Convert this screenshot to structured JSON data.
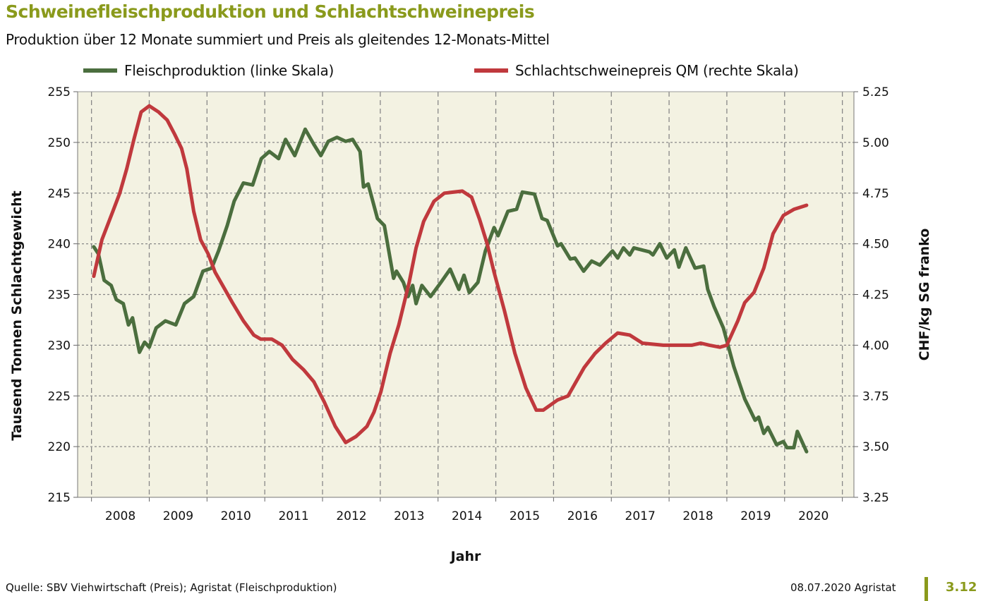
{
  "header": {
    "title": "Schweinefleischproduktion und Schlachtschweinepreis",
    "subtitle": "Produktion über 12 Monate summiert und Preis als gleitendes 12-Monats-Mittel"
  },
  "footer": {
    "source": "Quelle: SBV Viehwirtschaft (Preis); Agristat (Fleischproduktion)",
    "date": "08.07.2020 Agristat",
    "number": "3.12"
  },
  "chart_data": {
    "type": "line",
    "xlabel": "Jahr",
    "ylabel": "Tausend Tonnen Schlachtgewicht",
    "y2label": "CHF/kg SG franko",
    "xlim": [
      2007.76,
      2021.2
    ],
    "ylim": [
      215,
      255
    ],
    "y2lim": [
      3.25,
      5.25
    ],
    "grid": true,
    "legend_position": "top",
    "background": "#f3f2e2",
    "x_tick_labels": [
      "2008",
      "2009",
      "2010",
      "2011",
      "2012",
      "2013",
      "2014",
      "2015",
      "2016",
      "2017",
      "2018",
      "2019",
      "2020"
    ],
    "y_tick_labels": [
      "215",
      "220",
      "225",
      "230",
      "235",
      "240",
      "245",
      "250",
      "255"
    ],
    "y2_tick_labels": [
      "3.25",
      "3.50",
      "3.75",
      "4.00",
      "4.25",
      "4.50",
      "4.75",
      "5.00",
      "5.25"
    ],
    "series": [
      {
        "name": "Fleischproduktion (linke Skala)",
        "axis": "left",
        "color": "#4b6e3e",
        "x": [
          2008.04,
          2008.12,
          2008.22,
          2008.34,
          2008.43,
          2008.55,
          2008.64,
          2008.71,
          2008.83,
          2008.92,
          2009.0,
          2009.12,
          2009.28,
          2009.46,
          2009.61,
          2009.77,
          2009.93,
          2010.08,
          2010.2,
          2010.35,
          2010.47,
          2010.63,
          2010.79,
          2010.94,
          2011.08,
          2011.24,
          2011.36,
          2011.52,
          2011.7,
          2011.85,
          2011.97,
          2012.1,
          2012.25,
          2012.4,
          2012.52,
          2012.65,
          2012.71,
          2012.79,
          2012.95,
          2013.07,
          2013.23,
          2013.28,
          2013.4,
          2013.48,
          2013.56,
          2013.62,
          2013.72,
          2013.87,
          2014.05,
          2014.21,
          2014.36,
          2014.45,
          2014.54,
          2014.69,
          2014.82,
          2014.97,
          2015.04,
          2015.21,
          2015.36,
          2015.46,
          2015.67,
          2015.8,
          2015.89,
          2016.07,
          2016.13,
          2016.29,
          2016.37,
          2016.52,
          2016.66,
          2016.8,
          2017.02,
          2017.11,
          2017.21,
          2017.32,
          2017.39,
          2017.66,
          2017.72,
          2017.84,
          2017.96,
          2018.09,
          2018.17,
          2018.29,
          2018.45,
          2018.6,
          2018.67,
          2018.78,
          2018.94,
          2019.12,
          2019.31,
          2019.49,
          2019.55,
          2019.64,
          2019.71,
          2019.86,
          2019.98,
          2020.04,
          2020.16,
          2020.22,
          2020.38
        ],
        "values": [
          239.7,
          239.0,
          236.4,
          235.9,
          234.5,
          234.1,
          232.0,
          232.7,
          229.3,
          230.3,
          229.8,
          231.7,
          232.4,
          232.0,
          234.1,
          234.8,
          237.3,
          237.6,
          239.3,
          241.8,
          244.2,
          246.0,
          245.8,
          248.4,
          249.1,
          248.4,
          250.3,
          248.7,
          251.3,
          249.8,
          248.7,
          250.1,
          250.5,
          250.1,
          250.3,
          249.1,
          245.6,
          245.9,
          242.5,
          241.8,
          236.6,
          237.3,
          236.2,
          234.8,
          235.9,
          234.1,
          235.9,
          234.8,
          236.2,
          237.5,
          235.5,
          236.9,
          235.2,
          236.2,
          239.3,
          241.6,
          240.8,
          243.2,
          243.4,
          245.1,
          244.9,
          242.5,
          242.3,
          239.8,
          240.0,
          238.5,
          238.6,
          237.3,
          238.3,
          237.9,
          239.3,
          238.6,
          239.6,
          238.9,
          239.6,
          239.2,
          238.9,
          240.0,
          238.6,
          239.4,
          237.7,
          239.6,
          237.6,
          237.8,
          235.5,
          233.8,
          231.7,
          227.9,
          224.7,
          222.6,
          222.9,
          221.3,
          221.9,
          220.2,
          220.5,
          219.9,
          219.9,
          221.5,
          219.5
        ]
      },
      {
        "name": "Schlachtschweinepreis QM (rechte Skala)",
        "axis": "right",
        "color": "#c0393d",
        "x": [
          2008.04,
          2008.18,
          2008.37,
          2008.49,
          2008.61,
          2008.73,
          2008.86,
          2009.0,
          2009.16,
          2009.31,
          2009.44,
          2009.56,
          2009.65,
          2009.77,
          2009.89,
          2010.02,
          2010.14,
          2010.3,
          2010.44,
          2010.63,
          2010.81,
          2010.93,
          2011.12,
          2011.3,
          2011.48,
          2011.67,
          2011.85,
          2012.03,
          2012.22,
          2012.4,
          2012.58,
          2012.77,
          2012.89,
          2013.01,
          2013.17,
          2013.32,
          2013.5,
          2013.62,
          2013.75,
          2013.93,
          2014.11,
          2014.42,
          2014.58,
          2014.72,
          2014.85,
          2014.97,
          2015.15,
          2015.33,
          2015.52,
          2015.7,
          2015.82,
          2016.07,
          2016.25,
          2016.37,
          2016.53,
          2016.72,
          2016.9,
          2017.11,
          2017.32,
          2017.54,
          2017.9,
          2018.39,
          2018.55,
          2018.7,
          2018.88,
          2019.0,
          2019.19,
          2019.31,
          2019.47,
          2019.64,
          2019.8,
          2019.98,
          2020.16,
          2020.38
        ],
        "values": [
          4.34,
          4.52,
          4.66,
          4.75,
          4.87,
          5.01,
          5.15,
          5.18,
          5.15,
          5.11,
          5.04,
          4.97,
          4.87,
          4.66,
          4.52,
          4.45,
          4.36,
          4.28,
          4.21,
          4.12,
          4.05,
          4.03,
          4.03,
          4.0,
          3.93,
          3.88,
          3.82,
          3.72,
          3.6,
          3.52,
          3.55,
          3.6,
          3.67,
          3.77,
          3.96,
          4.1,
          4.31,
          4.48,
          4.61,
          4.71,
          4.75,
          4.76,
          4.73,
          4.62,
          4.5,
          4.36,
          4.17,
          3.96,
          3.79,
          3.68,
          3.68,
          3.73,
          3.75,
          3.81,
          3.89,
          3.96,
          4.01,
          4.06,
          4.05,
          4.01,
          4.0,
          4.0,
          4.01,
          4.0,
          3.99,
          4.0,
          4.12,
          4.21,
          4.26,
          4.38,
          4.55,
          4.64,
          4.67,
          4.69
        ]
      }
    ]
  }
}
